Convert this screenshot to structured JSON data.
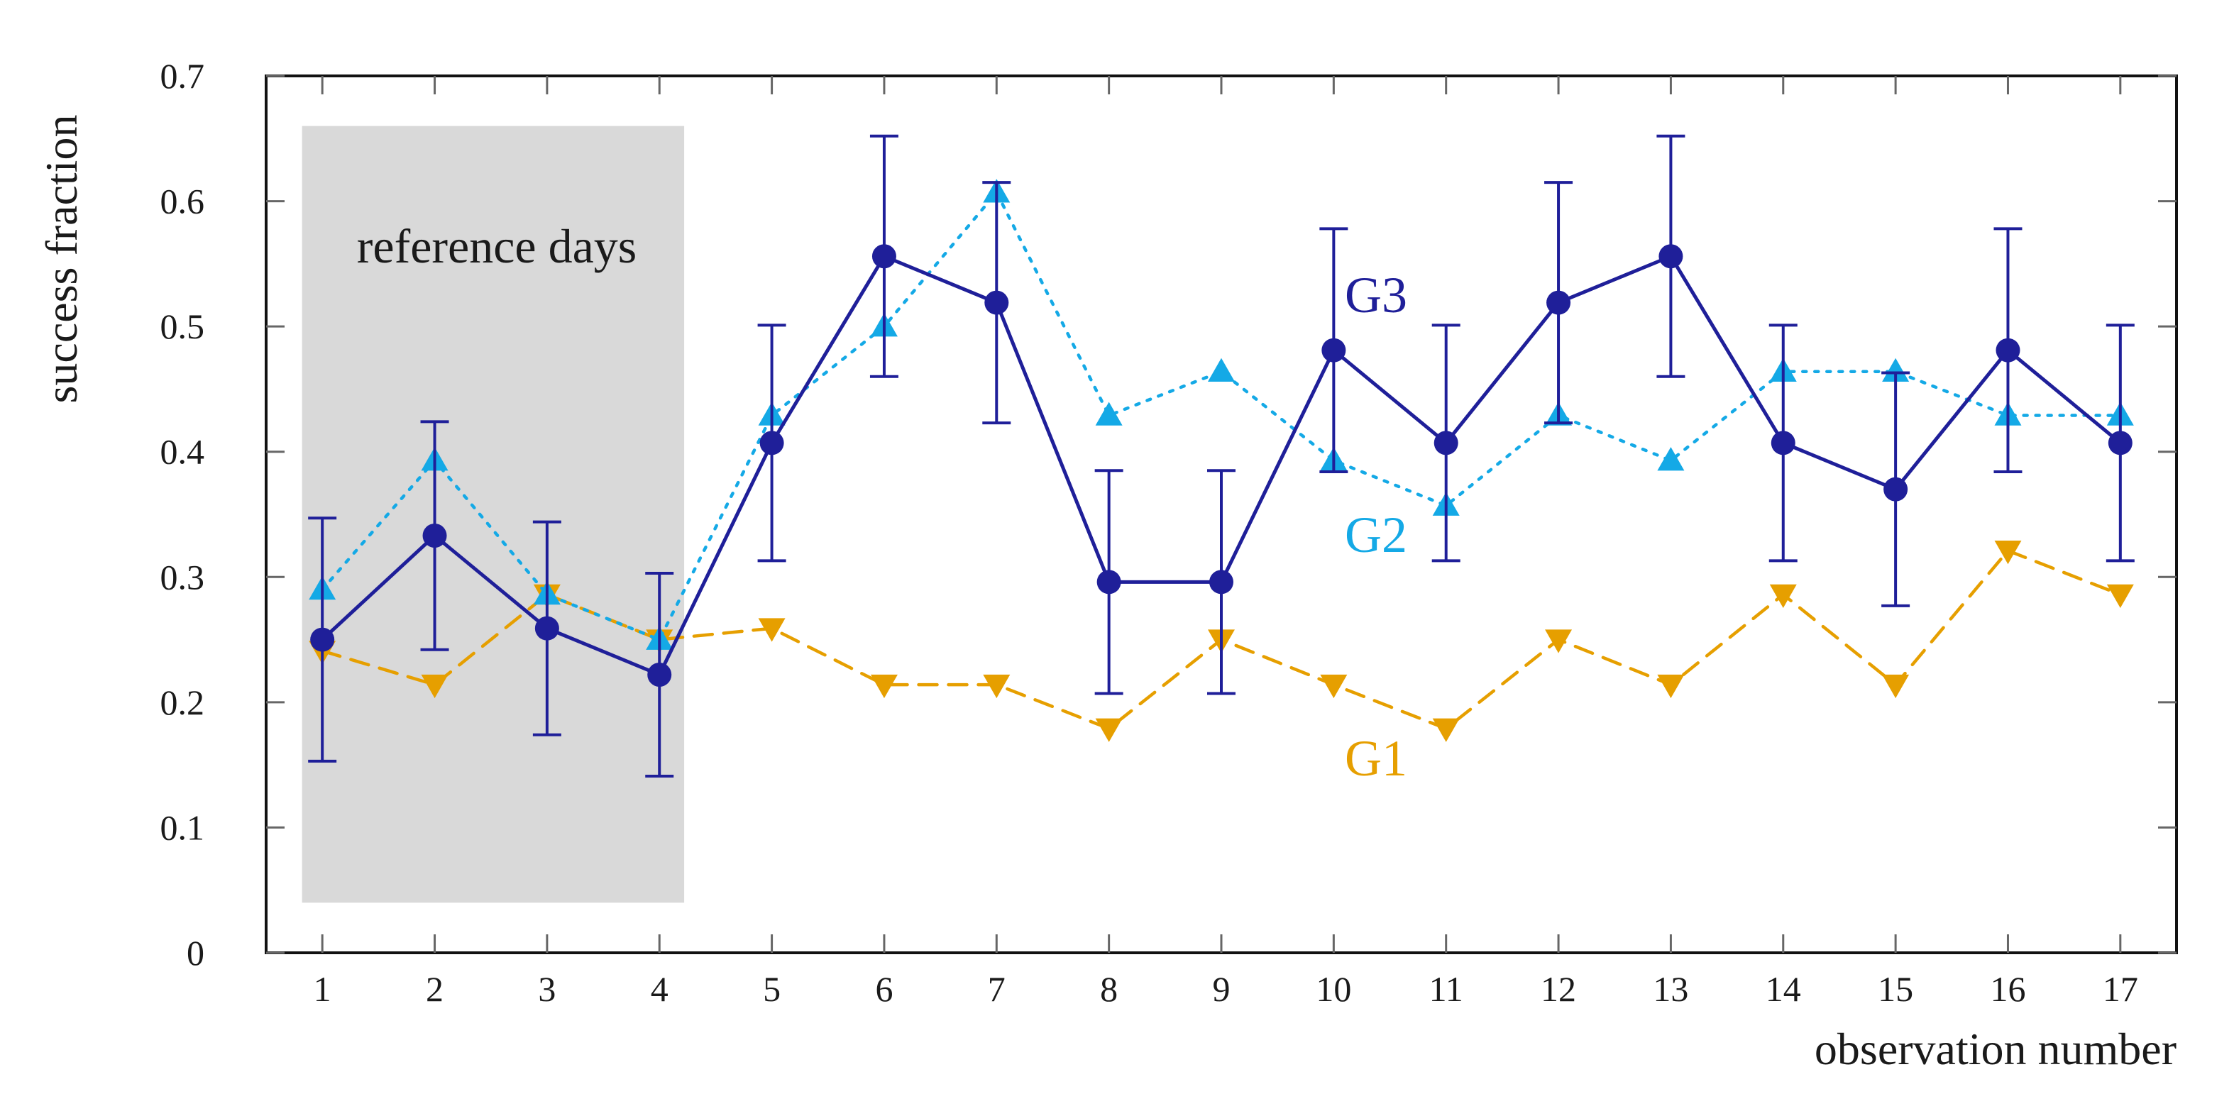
{
  "chart_data": {
    "type": "line",
    "title": "",
    "xlabel": "observation number",
    "ylabel": "success fraction",
    "xlim": [
      0.5,
      17.5
    ],
    "ylim": [
      0,
      0.7
    ],
    "x": [
      1,
      2,
      3,
      4,
      5,
      6,
      7,
      8,
      9,
      10,
      11,
      12,
      13,
      14,
      15,
      16,
      17
    ],
    "x_tick_labels": [
      "1",
      "2",
      "3",
      "4",
      "5",
      "6",
      "7",
      "8",
      "9",
      "10",
      "11",
      "12",
      "13",
      "14",
      "15",
      "16",
      "17"
    ],
    "y_ticks": [
      0,
      0.1,
      0.2,
      0.3,
      0.4,
      0.5,
      0.6,
      0.7
    ],
    "y_tick_labels": [
      "0",
      "0.1",
      "0.2",
      "0.3",
      "0.4",
      "0.5",
      "0.6",
      "0.7"
    ],
    "grid": "tick marks only",
    "annotation": {
      "text": "reference days",
      "x_range": [
        0.82,
        4.22
      ],
      "y_range": [
        0.04,
        0.66
      ],
      "color": "#d9d9d9"
    },
    "series": [
      {
        "name": "G1",
        "color": "#e69f00",
        "line_style": "dashed",
        "marker": "triangle-down",
        "values": [
          0.241,
          0.214,
          0.286,
          0.25,
          0.259,
          0.214,
          0.214,
          0.179,
          0.25,
          0.214,
          0.179,
          0.25,
          0.214,
          0.286,
          0.214,
          0.321,
          0.286
        ]
      },
      {
        "name": "G2",
        "color": "#14a9e6",
        "line_style": "dotted",
        "marker": "triangle-up",
        "values": [
          0.29,
          0.393,
          0.286,
          0.25,
          0.429,
          0.5,
          0.607,
          0.429,
          0.464,
          0.393,
          0.357,
          0.429,
          0.393,
          0.464,
          0.464,
          0.429,
          0.429
        ]
      },
      {
        "name": "G3",
        "color": "#1f1f99",
        "line_style": "solid",
        "marker": "circle",
        "values": [
          0.25,
          0.333,
          0.259,
          0.222,
          0.407,
          0.556,
          0.519,
          0.296,
          0.296,
          0.481,
          0.407,
          0.519,
          0.556,
          0.407,
          0.37,
          0.481,
          0.407
        ],
        "error_low": [
          0.153,
          0.242,
          0.174,
          0.141,
          0.313,
          0.46,
          0.423,
          0.207,
          0.207,
          0.384,
          0.313,
          0.423,
          0.46,
          0.313,
          0.277,
          0.384,
          0.313
        ],
        "error_high": [
          0.347,
          0.424,
          0.344,
          0.303,
          0.501,
          0.652,
          0.615,
          0.385,
          0.385,
          0.578,
          0.501,
          0.615,
          0.652,
          0.501,
          0.463,
          0.578,
          0.501
        ]
      }
    ]
  }
}
